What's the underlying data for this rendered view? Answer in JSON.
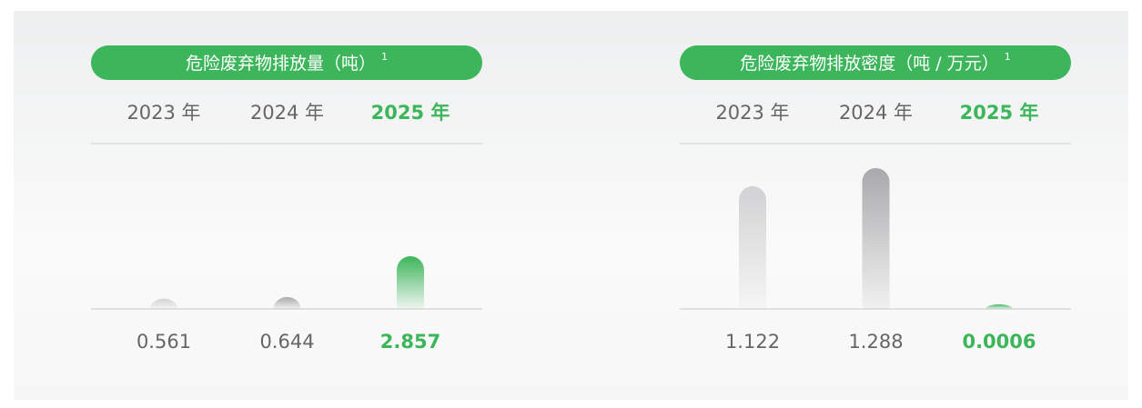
{
  "chart_data": [
    {
      "type": "bar",
      "title": "危险废弃物排放量（吨）",
      "title_note": "1",
      "categories": [
        "2023 年",
        "2024 年",
        "2025 年"
      ],
      "values": [
        0.561,
        0.644,
        2.857
      ],
      "colors": [
        "#d2d2d4",
        "#a9a9ac",
        "#3cb55b"
      ],
      "accent": "#3cb55b"
    },
    {
      "type": "bar",
      "title": "危险废弃物排放密度（吨 / 万元）",
      "title_note": "1",
      "categories": [
        "2023 年",
        "2024 年",
        "2025 年"
      ],
      "values": [
        1.122,
        1.288,
        0.0006
      ],
      "colors": [
        "#d2d2d4",
        "#a9a9ac",
        "#3cb55b"
      ],
      "accent": "#3cb55b"
    }
  ]
}
